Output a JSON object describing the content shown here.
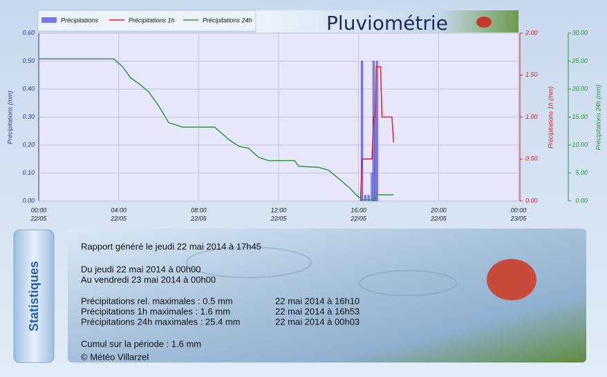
{
  "chart_data": {
    "type": "combo",
    "title": "Pluviométrie",
    "y_label": "Précipitations (mm)",
    "y2_label": "Précipitations 1h (mm)",
    "y3_label": "Précipitations 24h (mm)",
    "xlim": [
      0,
      24
    ],
    "xticks": [
      {
        "value": 0,
        "label": "00:00",
        "date": "22/05"
      },
      {
        "value": 4,
        "label": "04:00",
        "date": "22/05"
      },
      {
        "value": 8,
        "label": "08:00",
        "date": "22/05"
      },
      {
        "value": 12,
        "label": "12:00",
        "date": "22/05"
      },
      {
        "value": 16,
        "label": "16:00",
        "date": "22/05"
      },
      {
        "value": 20,
        "label": "20:00",
        "date": "22/05"
      },
      {
        "value": 24,
        "label": "00:00",
        "date": "23/05"
      }
    ],
    "ylim": [
      0,
      0.6
    ],
    "yticks": [
      {
        "value": 0,
        "label": "0.00"
      },
      {
        "value": 0.1,
        "label": "0.10"
      },
      {
        "value": 0.2,
        "label": "0.20"
      },
      {
        "value": 0.3,
        "label": "0.30"
      },
      {
        "value": 0.4,
        "label": "0.40"
      },
      {
        "value": 0.5,
        "label": "0.50"
      },
      {
        "value": 0.6,
        "label": "0.60"
      }
    ],
    "y2lim": [
      0,
      2
    ],
    "y2ticks": [
      {
        "value": 0,
        "label": "0.00"
      },
      {
        "value": 0.5,
        "label": "0.50"
      },
      {
        "value": 1,
        "label": "1.00"
      },
      {
        "value": 1.5,
        "label": "1.50"
      },
      {
        "value": 2,
        "label": "2.00"
      }
    ],
    "y3lim": [
      0,
      30
    ],
    "y3ticks": [
      {
        "value": 0,
        "label": "0.00"
      },
      {
        "value": 5,
        "label": "5.00"
      },
      {
        "value": 10,
        "label": "10.00"
      },
      {
        "value": 15,
        "label": "15.00"
      },
      {
        "value": 20,
        "label": "20.00"
      },
      {
        "value": 25,
        "label": "25.00"
      },
      {
        "value": 30,
        "label": "30.00"
      }
    ],
    "grid": true,
    "series": [
      {
        "name": "Précipitations",
        "type": "bar",
        "axis": "y",
        "color": "#7777ee",
        "x": [
          16.17,
          16.33,
          16.5,
          16.67,
          16.75,
          16.83,
          16.92
        ],
        "values": [
          0.5,
          0.02,
          0.02,
          0.1,
          0.5,
          0.3,
          0.5
        ]
      },
      {
        "name": "Précipitations 1h",
        "type": "line",
        "axis": "y2",
        "color": "#e0202a",
        "x": [
          16.1,
          16.17,
          16.67,
          16.75,
          16.83,
          16.88,
          17.1,
          17.17,
          17.67,
          17.75
        ],
        "values": [
          0,
          0.5,
          0.5,
          1.0,
          1.0,
          1.6,
          1.6,
          1.0,
          1.0,
          0.7
        ]
      },
      {
        "name": "Précipitations 24h",
        "type": "line",
        "axis": "y3",
        "color": "#2a9a3a",
        "x": [
          0,
          3.75,
          4.2,
          4.6,
          5,
          5.5,
          6,
          6.5,
          7.2,
          8.8,
          9.5,
          10,
          10.5,
          11,
          11.5,
          12.8,
          13,
          14,
          14.5,
          15,
          15.5,
          15.9,
          16.2,
          16.8,
          16.9,
          17.75
        ],
        "values": [
          25.4,
          25.4,
          24,
          22,
          21,
          19.5,
          17,
          14,
          13.2,
          13.2,
          11,
          9.8,
          9.4,
          7.8,
          7.2,
          7.2,
          6.2,
          6,
          5.5,
          4,
          2.5,
          1,
          0.2,
          0.2,
          1.1,
          1.1
        ]
      }
    ]
  },
  "statistics": {
    "title": "Statistiques",
    "report": "Rapport généré le jeudi 22 mai 2014 à 17h45",
    "from": "Du jeudi 22 mai 2014 à 00h00",
    "to": "Au vendredi 23 mai 2014 à 00h00",
    "rows": [
      [
        "Précipitations rel. maximales : 0.5 mm",
        "22 mai 2014 à 16h10"
      ],
      [
        "Précipitations 1h maximales : 1.6 mm",
        "22 mai 2014 à 16h53"
      ],
      [
        "Précipitations 24h maximales : 25.4 mm",
        "22 mai 2014 à 00h03"
      ]
    ],
    "cumul": "Cumul sur la période : 1.6 mm",
    "copyright": "© Météo Villarzel"
  }
}
